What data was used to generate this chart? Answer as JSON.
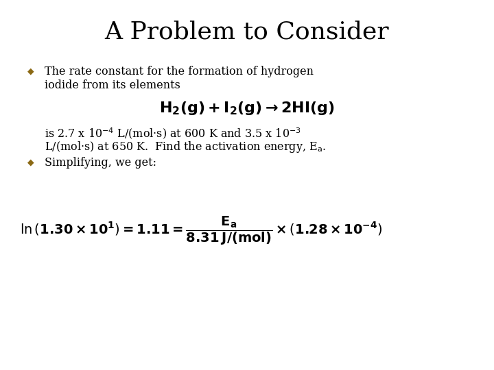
{
  "background_color": "#ffffff",
  "title": "A Problem to Consider",
  "title_fontsize": 26,
  "title_color": "#000000",
  "bullet_color": "#8B6914",
  "text_color": "#000000",
  "bullet1_line1": "The rate constant for the formation of hydrogen",
  "bullet1_line2": "iodide from its elements",
  "bullet2_text": "Simplifying, we get:",
  "body_fontsize": 11.5,
  "reaction_fontsize": 16,
  "equation_fontsize": 14
}
